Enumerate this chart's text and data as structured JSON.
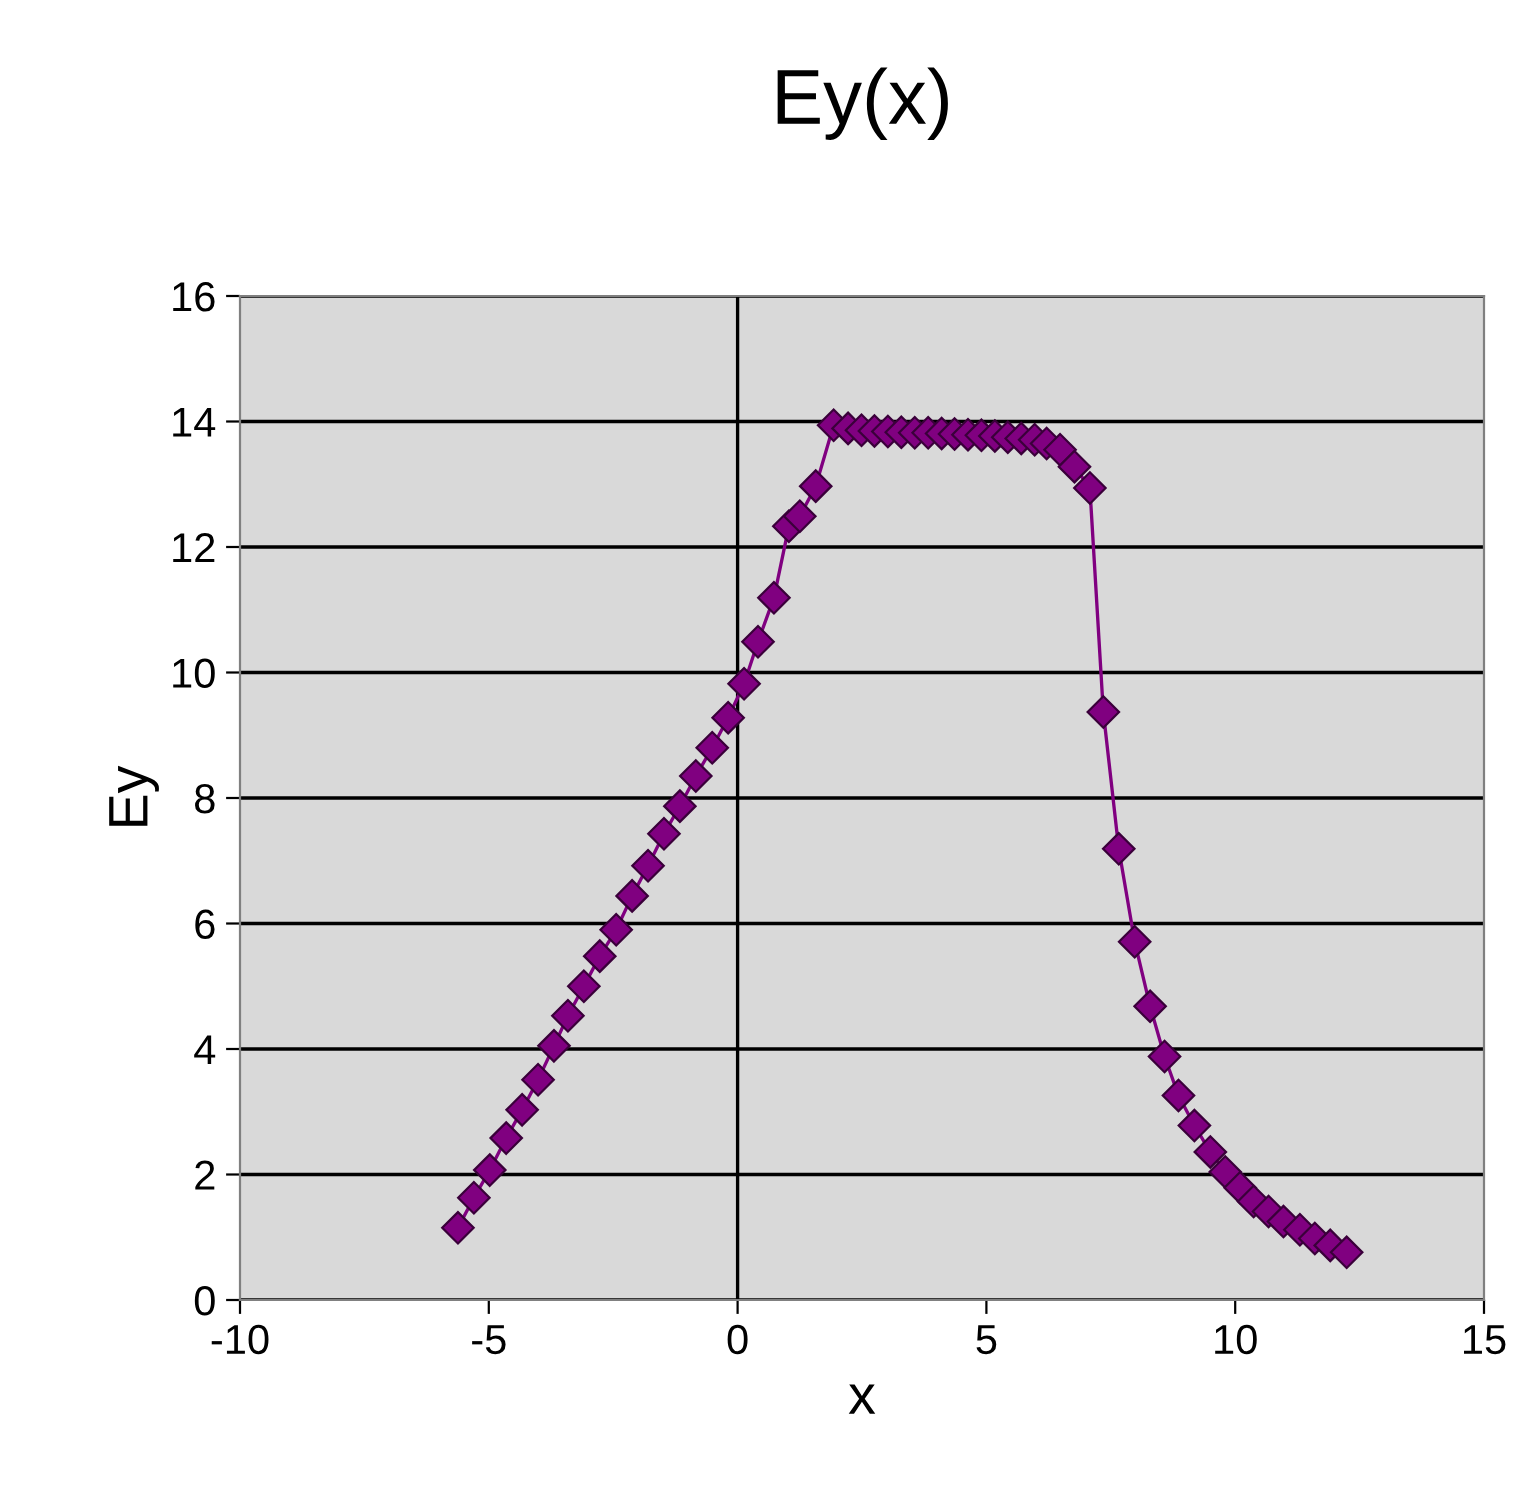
{
  "chart_data": {
    "type": "line",
    "title": "Ey(x)",
    "xlabel": "x",
    "ylabel": "Ey",
    "x": [
      -5.62,
      -5.3,
      -4.98,
      -4.65,
      -4.33,
      -4.01,
      -3.69,
      -3.41,
      -3.09,
      -2.77,
      -2.44,
      -2.12,
      -1.8,
      -1.48,
      -1.16,
      -0.84,
      -0.51,
      -0.19,
      0.13,
      0.41,
      0.73,
      1.03,
      1.25,
      1.57,
      1.93,
      2.22,
      2.49,
      2.75,
      3.02,
      3.29,
      3.56,
      3.83,
      4.1,
      4.36,
      4.63,
      4.9,
      5.17,
      5.43,
      5.7,
      5.97,
      6.21,
      6.48,
      6.77,
      7.08,
      7.35,
      7.66,
      7.98,
      8.29,
      8.58,
      8.86,
      9.18,
      9.5,
      9.8,
      10.1,
      10.37,
      10.67,
      10.97,
      11.3,
      11.6,
      11.91,
      12.24
    ],
    "series": [
      {
        "color": "#800080",
        "values": [
          1.15,
          1.63,
          2.07,
          2.58,
          3.03,
          3.51,
          4.05,
          4.53,
          5.0,
          5.48,
          5.9,
          6.44,
          6.92,
          7.43,
          7.87,
          8.35,
          8.8,
          9.28,
          9.82,
          10.49,
          11.19,
          12.33,
          12.49,
          12.97,
          13.94,
          13.89,
          13.86,
          13.85,
          13.84,
          13.83,
          13.82,
          13.82,
          13.81,
          13.8,
          13.79,
          13.78,
          13.77,
          13.75,
          13.73,
          13.71,
          13.65,
          13.55,
          13.28,
          12.94,
          9.37,
          7.19,
          5.71,
          4.68,
          3.88,
          3.26,
          2.78,
          2.36,
          2.04,
          1.79,
          1.57,
          1.41,
          1.25,
          1.12,
          0.98,
          0.87,
          0.76
        ]
      }
    ],
    "xlim": [
      -10,
      15
    ],
    "xticks": [
      -10,
      -5,
      0,
      5,
      10,
      15
    ],
    "ylim": [
      0,
      16
    ],
    "yticks": [
      0,
      2,
      4,
      6,
      8,
      10,
      12,
      14,
      16
    ],
    "ref_lines": [
      {
        "axis": "x",
        "value": 0,
        "color": "#000000"
      }
    ],
    "grid": "y",
    "marker": "diamond",
    "line_style": "solid",
    "legend": false
  }
}
